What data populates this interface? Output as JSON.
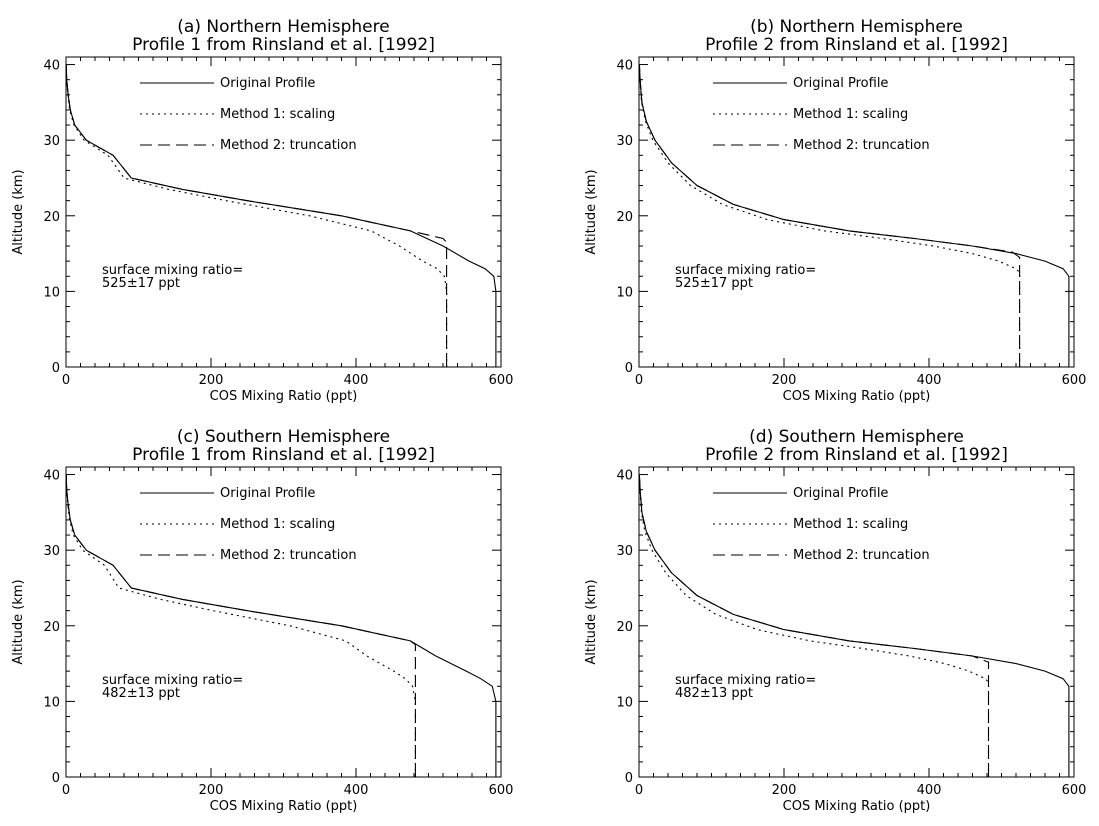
{
  "chart_data": [
    {
      "type": "line",
      "title": "(a) Northern Hemisphere",
      "subtitle": "Profile 1 from Rinsland et al. [1992]",
      "xlabel": "COS Mixing Ratio (ppt)",
      "ylabel": "Altitude (km)",
      "xlim": [
        0,
        600
      ],
      "ylim": [
        0,
        41
      ],
      "xticks": [
        "0",
        "200",
        "400",
        "600"
      ],
      "yticks": [
        "0",
        "10",
        "20",
        "30",
        "40"
      ],
      "legend": [
        "Original Profile",
        "Method 1: scaling",
        "Method 2: truncation"
      ],
      "annotation": [
        "surface mixing ratio=",
        "525±17 ppt"
      ],
      "series": [
        {
          "name": "Original Profile",
          "style": "solid",
          "x": [
            593,
            593,
            590,
            578,
            556,
            520,
            475,
            380,
            250,
            160,
            90,
            65,
            28,
            12,
            6,
            3,
            1,
            0.3
          ],
          "y": [
            0,
            10,
            12,
            13,
            14,
            16,
            18,
            20,
            22,
            23.5,
            25,
            28,
            30,
            32,
            34,
            36,
            38,
            40
          ]
        },
        {
          "name": "Method 1: scaling",
          "style": "dotted",
          "x": [
            525,
            525,
            522,
            512,
            492,
            460,
            421,
            336,
            221,
            141,
            80,
            58,
            25,
            11,
            5,
            2.5,
            1,
            0.3
          ],
          "y": [
            0,
            10,
            12,
            13,
            14,
            16,
            18,
            20,
            22,
            23.5,
            25,
            28,
            30,
            32,
            34,
            36,
            38,
            40
          ]
        },
        {
          "name": "Method 2: truncation",
          "style": "dashed",
          "x": [
            525,
            525,
            520,
            475,
            380,
            250,
            160,
            90,
            65,
            28,
            12,
            6,
            3,
            1,
            0.3
          ],
          "y": [
            0,
            16.5,
            17,
            18,
            20,
            22,
            23.5,
            25,
            28,
            30,
            32,
            34,
            36,
            38,
            40
          ]
        }
      ]
    },
    {
      "type": "line",
      "title": "(b) Northern Hemisphere",
      "subtitle": "Profile 2 from Rinsland et al. [1992]",
      "xlabel": "COS Mixing Ratio (ppt)",
      "ylabel": "Altitude (km)",
      "xlim": [
        0,
        600
      ],
      "ylim": [
        0,
        41
      ],
      "xticks": [
        "0",
        "200",
        "400",
        "600"
      ],
      "yticks": [
        "0",
        "10",
        "20",
        "30",
        "40"
      ],
      "legend": [
        "Original Profile",
        "Method 1: scaling",
        "Method 2: truncation"
      ],
      "annotation": [
        "surface mixing ratio=",
        "525±17 ppt"
      ],
      "series": [
        {
          "name": "Original Profile",
          "style": "solid",
          "x": [
            593,
            593,
            585,
            560,
            520,
            460,
            380,
            290,
            200,
            130,
            80,
            45,
            22,
            10,
            4,
            1.5,
            0.5
          ],
          "y": [
            0,
            12,
            13,
            14,
            15,
            16,
            17,
            18,
            19.5,
            21.5,
            24,
            27,
            30,
            32.5,
            35,
            38,
            40
          ]
        },
        {
          "name": "Method 1: scaling",
          "style": "dotted",
          "x": [
            525,
            525,
            520,
            496,
            460,
            406,
            336,
            256,
            177,
            115,
            71,
            40,
            19,
            9,
            3.5,
            1.3,
            0.4
          ],
          "y": [
            0,
            12.5,
            13,
            14,
            15,
            16,
            17,
            18,
            19.5,
            21.5,
            24,
            27,
            30,
            32.5,
            35,
            38,
            40
          ]
        },
        {
          "name": "Method 2: truncation",
          "style": "dashed",
          "x": [
            525,
            525,
            515,
            460,
            380,
            290,
            200,
            130,
            80,
            45,
            22,
            10,
            4,
            1.5,
            0.5
          ],
          "y": [
            0,
            14.5,
            15.2,
            16,
            17,
            18,
            19.5,
            21.5,
            24,
            27,
            30,
            32.5,
            35,
            38,
            40
          ]
        }
      ]
    },
    {
      "type": "line",
      "title": "(c) Southern Hemisphere",
      "subtitle": "Profile 1 from Rinsland et al. [1992]",
      "xlabel": "COS Mixing Ratio (ppt)",
      "ylabel": "Altitude (km)",
      "xlim": [
        0,
        600
      ],
      "ylim": [
        0,
        41
      ],
      "xticks": [
        "0",
        "200",
        "400",
        "600"
      ],
      "yticks": [
        "0",
        "10",
        "20",
        "30",
        "40"
      ],
      "legend": [
        "Original Profile",
        "Method 1: scaling",
        "Method 2: truncation"
      ],
      "annotation": [
        "surface mixing ratio=",
        "482±13 ppt"
      ],
      "series": [
        {
          "name": "Original Profile",
          "style": "solid",
          "x": [
            593,
            593,
            588,
            572,
            552,
            510,
            475,
            380,
            250,
            160,
            90,
            65,
            28,
            12,
            6,
            3,
            1,
            0.3
          ],
          "y": [
            0,
            10,
            12,
            13,
            14,
            16,
            18,
            20,
            22,
            23.5,
            25,
            28,
            30,
            32,
            34,
            36,
            38,
            40
          ]
        },
        {
          "name": "Method 1: scaling",
          "style": "dotted",
          "x": [
            482,
            482,
            478,
            468,
            452,
            415,
            386,
            309,
            203,
            130,
            73,
            53,
            23,
            10,
            5,
            2.5,
            1,
            0.3
          ],
          "y": [
            0,
            10,
            12,
            13,
            14,
            16,
            18,
            20,
            22,
            23.5,
            25,
            28,
            30,
            32,
            34,
            36,
            38,
            40
          ]
        },
        {
          "name": "Method 2: truncation",
          "style": "dashed",
          "x": [
            482,
            482,
            475,
            380,
            250,
            160,
            90,
            65,
            28,
            12,
            6,
            3,
            1,
            0.3
          ],
          "y": [
            0,
            17.5,
            18,
            20,
            22,
            23.5,
            25,
            28,
            30,
            32,
            34,
            36,
            38,
            40
          ]
        }
      ]
    },
    {
      "type": "line",
      "title": "(d) Southern Hemisphere",
      "subtitle": "Profile 2 from Rinsland et al. [1992]",
      "xlabel": "COS Mixing Ratio (ppt)",
      "ylabel": "Altitude (km)",
      "xlim": [
        0,
        600
      ],
      "ylim": [
        0,
        41
      ],
      "xticks": [
        "0",
        "200",
        "400",
        "600"
      ],
      "yticks": [
        "0",
        "10",
        "20",
        "30",
        "40"
      ],
      "legend": [
        "Original Profile",
        "Method 1: scaling",
        "Method 2: truncation"
      ],
      "annotation": [
        "surface mixing ratio=",
        "482±13 ppt"
      ],
      "series": [
        {
          "name": "Original Profile",
          "style": "solid",
          "x": [
            593,
            593,
            585,
            560,
            520,
            460,
            380,
            290,
            200,
            130,
            80,
            45,
            22,
            10,
            4,
            1.5,
            0.5
          ],
          "y": [
            0,
            12,
            13,
            14,
            15,
            16,
            17,
            18,
            19.5,
            21.5,
            24,
            27,
            30,
            32.5,
            35,
            38,
            40
          ]
        },
        {
          "name": "Method 1: scaling",
          "style": "dotted",
          "x": [
            482,
            482,
            478,
            455,
            422,
            373,
            309,
            236,
            163,
            106,
            65,
            37,
            18,
            8,
            3.3,
            1.2,
            0.4
          ],
          "y": [
            0,
            12.5,
            13,
            14,
            15,
            16,
            17,
            18,
            19.5,
            21.5,
            24,
            27,
            30,
            32.5,
            35,
            38,
            40
          ]
        },
        {
          "name": "Method 2: truncation",
          "style": "dashed",
          "x": [
            482,
            482,
            470,
            460,
            380,
            290,
            200,
            130,
            80,
            45,
            22,
            10,
            4,
            1.5,
            0.5
          ],
          "y": [
            0,
            15.2,
            15.6,
            16,
            17,
            18,
            19.5,
            21.5,
            24,
            27,
            30,
            32.5,
            35,
            38,
            40
          ]
        }
      ]
    }
  ]
}
